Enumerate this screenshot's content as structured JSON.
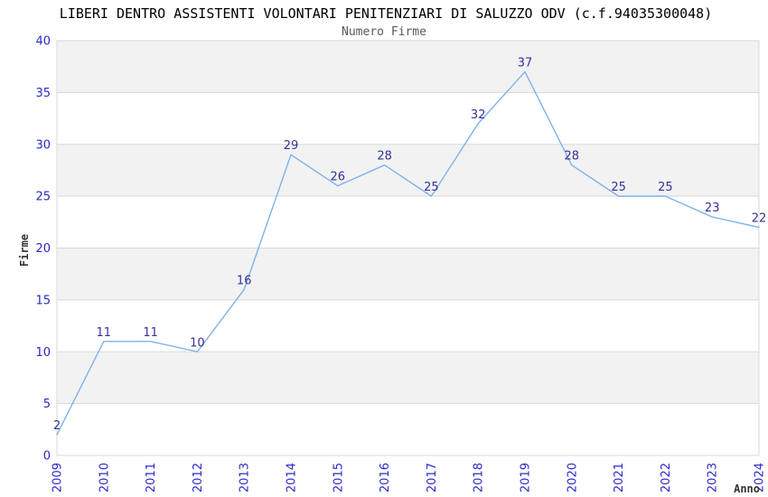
{
  "chart_data": {
    "type": "line",
    "title": "LIBERI DENTRO ASSISTENTI VOLONTARI PENITENZIARI DI SALUZZO ODV (c.f.94035300048)",
    "subtitle": "Numero Firme",
    "xlabel": "Anno",
    "ylabel": "Firme",
    "categories": [
      "2009",
      "2010",
      "2011",
      "2012",
      "2013",
      "2014",
      "2015",
      "2016",
      "2017",
      "2018",
      "2019",
      "2020",
      "2021",
      "2022",
      "2023",
      "2024"
    ],
    "values": [
      2,
      11,
      11,
      10,
      16,
      29,
      26,
      28,
      25,
      32,
      37,
      28,
      25,
      25,
      23,
      22
    ],
    "ylim": [
      0,
      40
    ],
    "yticks": [
      0,
      5,
      10,
      15,
      20,
      25,
      30,
      35,
      40
    ],
    "ytick_step": 5,
    "grid": "horizontal-bands-alternating",
    "legend": "none",
    "data_labels": true,
    "colors": {
      "line": "#7fb2ec",
      "tick_label": "#2929cc",
      "data_label": "#333399",
      "band_fill": "#f2f2f2",
      "grid_line": "#d9d9d9",
      "title": "#000000",
      "subtitle": "#595959",
      "axis_label": "#333333",
      "background": "#ffffff"
    }
  }
}
